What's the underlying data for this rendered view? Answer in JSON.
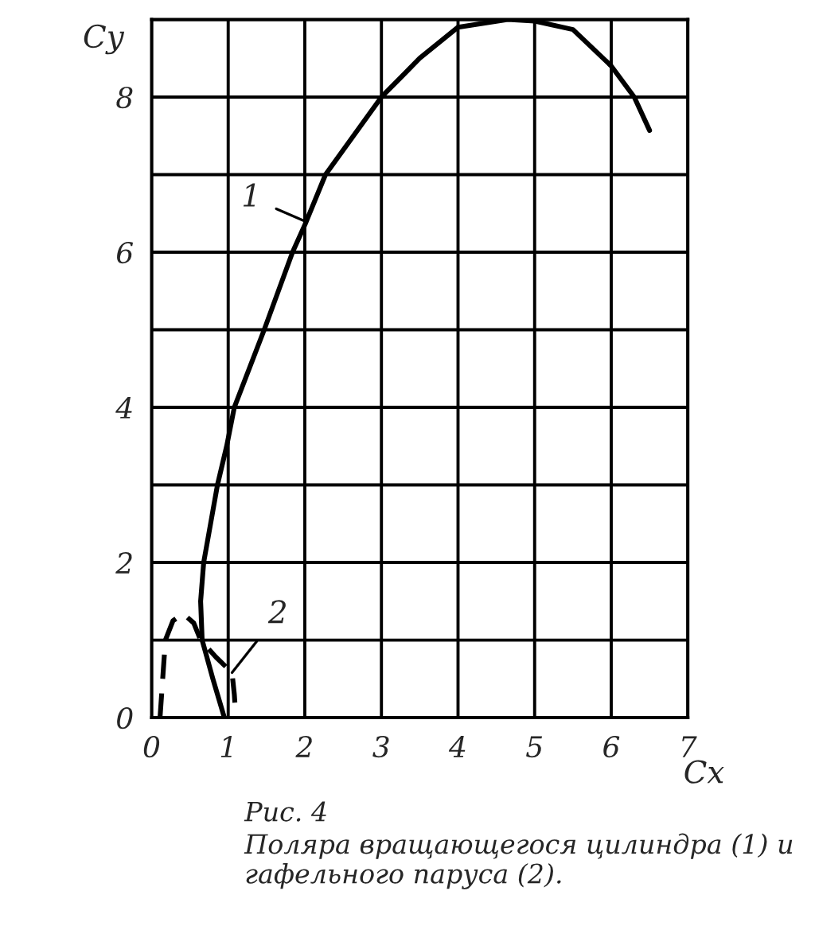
{
  "chart_data": {
    "type": "line",
    "xlabel": "Cx",
    "ylabel": "Cy",
    "xlim": [
      0,
      7
    ],
    "ylim": [
      0,
      9
    ],
    "xticks": [
      0,
      1,
      2,
      3,
      4,
      5,
      6,
      7
    ],
    "yticks": [
      0,
      {
        "value": 1,
        "label": null
      },
      2,
      {
        "value": 3,
        "label": null
      },
      4,
      {
        "value": 5,
        "label": null
      },
      6,
      {
        "value": 7,
        "label": null
      },
      8,
      {
        "value": 9,
        "label": null
      }
    ],
    "grid": true,
    "series": [
      {
        "color": "#000000",
        "line_style": "solid",
        "x": [
          0.95,
          0.8,
          0.66,
          0.64,
          0.68,
          0.86,
          0.98,
          1.08,
          1.47,
          1.84,
          2.0,
          2.27,
          3.0,
          3.5,
          4.0,
          4.65,
          5.0,
          5.5,
          6.0,
          6.3,
          6.5
        ],
        "values": [
          0,
          0.5,
          1,
          1.5,
          2,
          3,
          3.5,
          4,
          5,
          6,
          6.35,
          7,
          8.0,
          8.5,
          8.9,
          9.0,
          8.98,
          8.87,
          8.4,
          8.0,
          7.57
        ]
      },
      {
        "color": "#000000",
        "line_style": "dashed",
        "x": [
          0.11,
          0.18,
          0.28,
          0.41,
          0.55,
          0.64,
          0.84,
          1.05,
          1.08,
          1.1
        ],
        "values": [
          0,
          1.0,
          1.25,
          1.34,
          1.22,
          1.0,
          0.78,
          0.58,
          0.3,
          0
        ]
      }
    ],
    "annotations": [
      {
        "text": "1",
        "x": 2.0,
        "y": 6.4
      },
      {
        "text": "2",
        "x": 1.05,
        "y": 0.58
      },
      "Рис. 4",
      "Поляра вращающегося цилиндра (1) и гафельного паруса (2)."
    ]
  }
}
